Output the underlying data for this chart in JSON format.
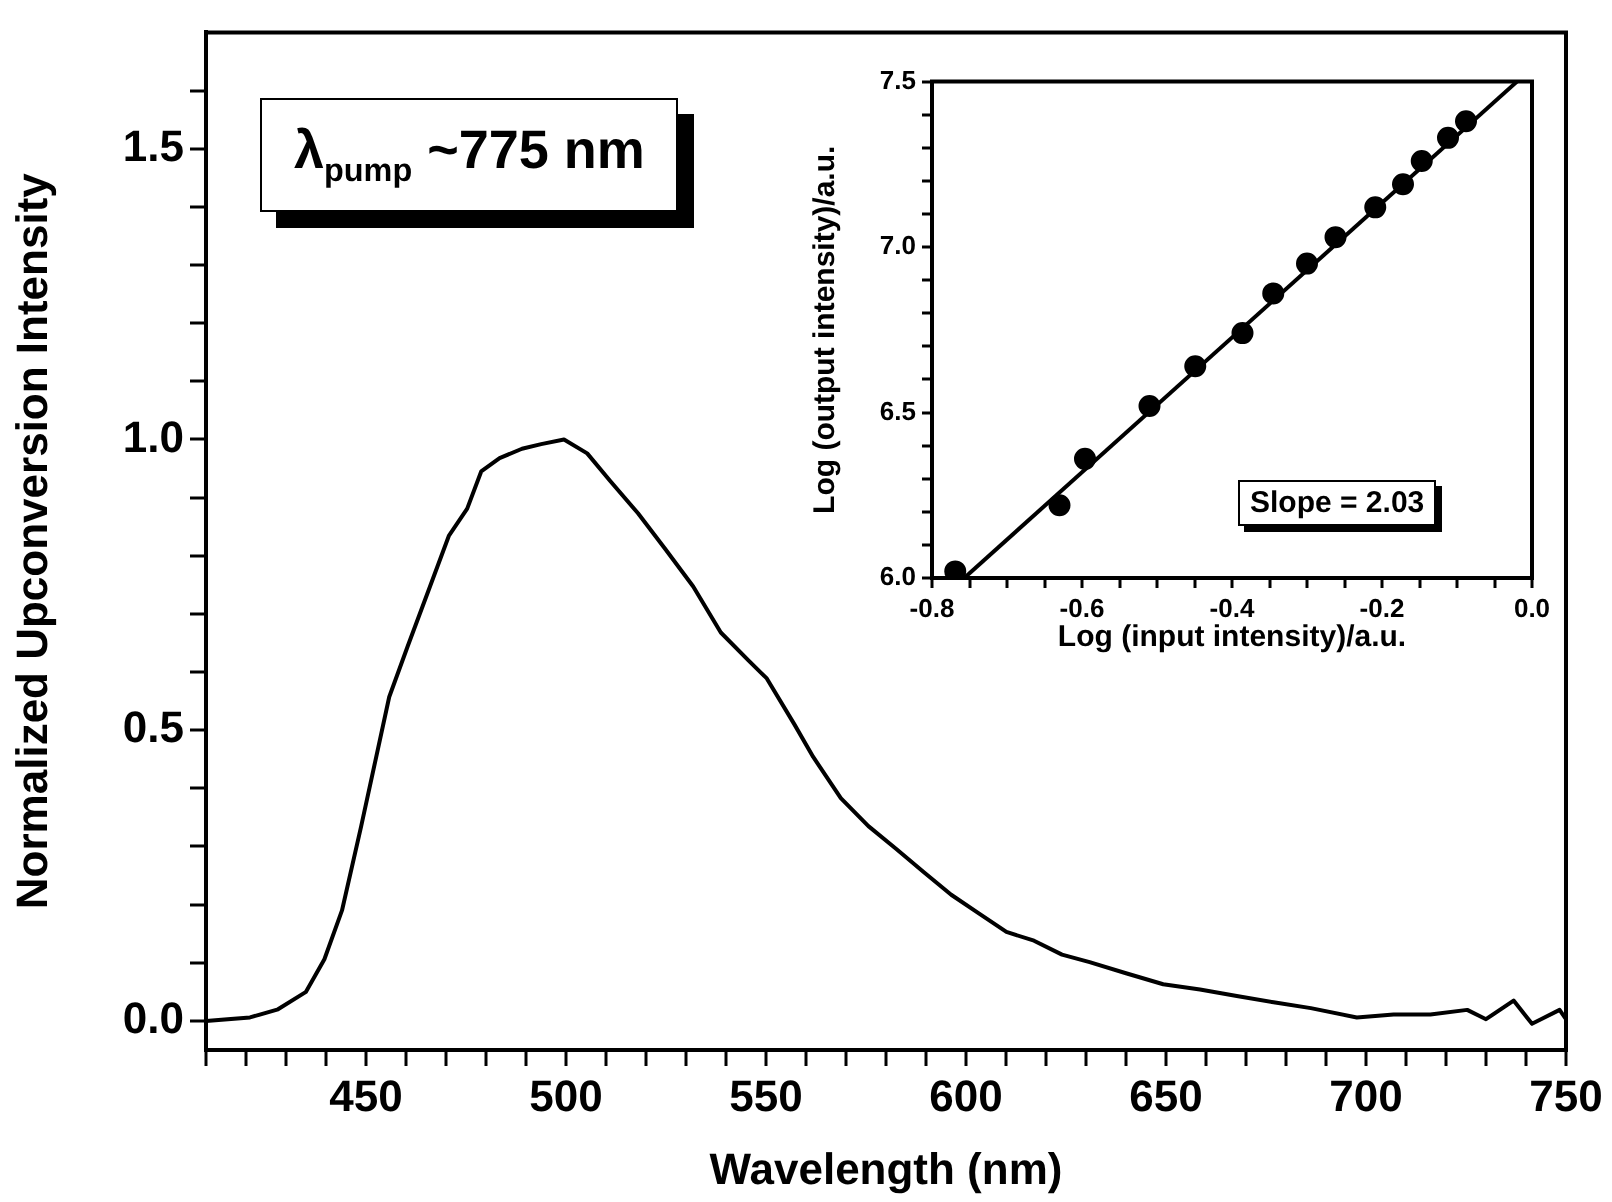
{
  "chart_data": [
    {
      "type": "line",
      "xlabel": "Wavelength (nm)",
      "ylabel": "Normalized Upconversion Intensity",
      "annotations": [
        "λ$_{pump}$ ~775 nm"
      ],
      "color": "#000000",
      "legend": false,
      "marker": "none",
      "x": [
        410,
        421,
        428,
        435,
        439.6,
        444,
        448.8,
        452.3,
        455.8,
        460.4,
        466,
        470.7,
        475.3,
        478.8,
        483.4,
        489,
        493.8,
        499.5,
        505.3,
        511,
        518,
        525,
        531.8,
        538.7,
        545.6,
        550.2,
        557.1,
        561.8,
        568.7,
        575.6,
        582.5,
        589.4,
        596.3,
        603.2,
        610.1,
        617,
        624,
        630.9,
        640,
        649.3,
        658.5,
        667.7,
        676.9,
        686.2,
        697.7,
        706.9,
        716.1,
        725.3,
        730,
        736.9,
        741.5,
        748.4,
        750
      ],
      "values": [
        0.0,
        0.006,
        0.02,
        0.05,
        0.106,
        0.19,
        0.335,
        0.446,
        0.557,
        0.644,
        0.747,
        0.834,
        0.881,
        0.945,
        0.968,
        0.984,
        0.992,
        1.0,
        0.976,
        0.929,
        0.873,
        0.81,
        0.747,
        0.668,
        0.62,
        0.589,
        0.51,
        0.454,
        0.383,
        0.335,
        0.296,
        0.256,
        0.217,
        0.185,
        0.153,
        0.138,
        0.114,
        0.101,
        0.082,
        0.063,
        0.054,
        0.043,
        0.032,
        0.022,
        0.006,
        0.011,
        0.011,
        0.019,
        0.003,
        0.035,
        -0.005,
        0.019,
        0.003
      ],
      "xlim": [
        410,
        750
      ],
      "ylim": [
        -0.05,
        1.7
      ],
      "xticks": [
        {
          "value": 410,
          "label": null
        },
        {
          "value": 420,
          "label": null
        },
        {
          "value": 430,
          "label": null
        },
        {
          "value": 440,
          "label": null
        },
        450,
        {
          "value": 460,
          "label": null
        },
        {
          "value": 470,
          "label": null
        },
        {
          "value": 480,
          "label": null
        },
        {
          "value": 490,
          "label": null
        },
        500,
        {
          "value": 510,
          "label": null
        },
        {
          "value": 520,
          "label": null
        },
        {
          "value": 530,
          "label": null
        },
        {
          "value": 540,
          "label": null
        },
        550,
        {
          "value": 560,
          "label": null
        },
        {
          "value": 570,
          "label": null
        },
        {
          "value": 580,
          "label": null
        },
        {
          "value": 590,
          "label": null
        },
        600,
        {
          "value": 610,
          "label": null
        },
        {
          "value": 620,
          "label": null
        },
        {
          "value": 630,
          "label": null
        },
        {
          "value": 640,
          "label": null
        },
        650,
        {
          "value": 660,
          "label": null
        },
        {
          "value": 670,
          "label": null
        },
        {
          "value": 680,
          "label": null
        },
        {
          "value": 690,
          "label": null
        },
        700,
        {
          "value": 710,
          "label": null
        },
        {
          "value": 720,
          "label": null
        },
        {
          "value": 730,
          "label": null
        },
        {
          "value": 740,
          "label": null
        },
        750
      ],
      "yticks": [
        {
          "value": 0,
          "label": "0.0"
        },
        {
          "value": 0.1,
          "label": null
        },
        {
          "value": 0.2,
          "label": null
        },
        {
          "value": 0.3,
          "label": null
        },
        {
          "value": 0.4,
          "label": null
        },
        0.5,
        {
          "value": 0.6,
          "label": null
        },
        {
          "value": 0.7,
          "label": null
        },
        {
          "value": 0.8,
          "label": null
        },
        {
          "value": 0.9,
          "label": null
        },
        {
          "value": 1,
          "label": "1.0"
        },
        {
          "value": 1.1,
          "label": null
        },
        {
          "value": 1.2,
          "label": null
        },
        {
          "value": 1.3,
          "label": null
        },
        {
          "value": 1.4,
          "label": null
        },
        1.5,
        {
          "value": 1.6,
          "label": null
        }
      ]
    },
    {
      "type": "scatter",
      "xlabel": "Log (input intensity)/a.u.",
      "ylabel": "Log (output intensity)/a.u.",
      "annotations": [
        "Slope = 2.03"
      ],
      "legend": false,
      "series": [
        {
          "type": "scatter",
          "marker": "circle",
          "color": "#000000",
          "x": [
            -0.769,
            -0.63,
            -0.596,
            -0.51,
            -0.449,
            -0.386,
            -0.345,
            -0.3,
            -0.262,
            -0.209,
            -0.172,
            -0.147,
            -0.112,
            -0.088
          ],
          "values": [
            6.02,
            6.22,
            6.36,
            6.52,
            6.64,
            6.74,
            6.86,
            6.95,
            7.03,
            7.12,
            7.19,
            7.26,
            7.33,
            7.38
          ]
        },
        {
          "type": "line",
          "marker": "none",
          "color": "#000000",
          "x": [
            -0.757,
            -0.02
          ],
          "values": [
            6.0,
            7.5
          ]
        }
      ],
      "xlim": [
        -0.8,
        0
      ],
      "ylim": [
        6,
        7.5
      ],
      "xticks": [
        -0.8,
        {
          "value": -0.75,
          "label": null
        },
        {
          "value": -0.7,
          "label": null
        },
        {
          "value": -0.65,
          "label": null
        },
        -0.6,
        {
          "value": -0.55,
          "label": null
        },
        {
          "value": -0.5,
          "label": null
        },
        {
          "value": -0.45,
          "label": null
        },
        -0.4,
        {
          "value": -0.35,
          "label": null
        },
        {
          "value": -0.3,
          "label": null
        },
        {
          "value": -0.25,
          "label": null
        },
        -0.2,
        {
          "value": -0.15,
          "label": null
        },
        {
          "value": -0.1,
          "label": null
        },
        {
          "value": -0.05,
          "label": null
        },
        {
          "value": 0,
          "label": "0.0"
        }
      ],
      "yticks": [
        {
          "value": 6,
          "label": "6.0"
        },
        {
          "value": 6.1,
          "label": null
        },
        {
          "value": 6.2,
          "label": null
        },
        {
          "value": 6.3,
          "label": null
        },
        {
          "value": 6.4,
          "label": null
        },
        6.5,
        {
          "value": 6.6,
          "label": null
        },
        {
          "value": 6.7,
          "label": null
        },
        {
          "value": 6.8,
          "label": null
        },
        {
          "value": 6.9,
          "label": null
        },
        {
          "value": 7,
          "label": "7.0"
        },
        {
          "value": 7.1,
          "label": null
        },
        {
          "value": 7.2,
          "label": null
        },
        {
          "value": 7.3,
          "label": null
        },
        {
          "value": 7.4,
          "label": null
        },
        7.5
      ]
    }
  ]
}
